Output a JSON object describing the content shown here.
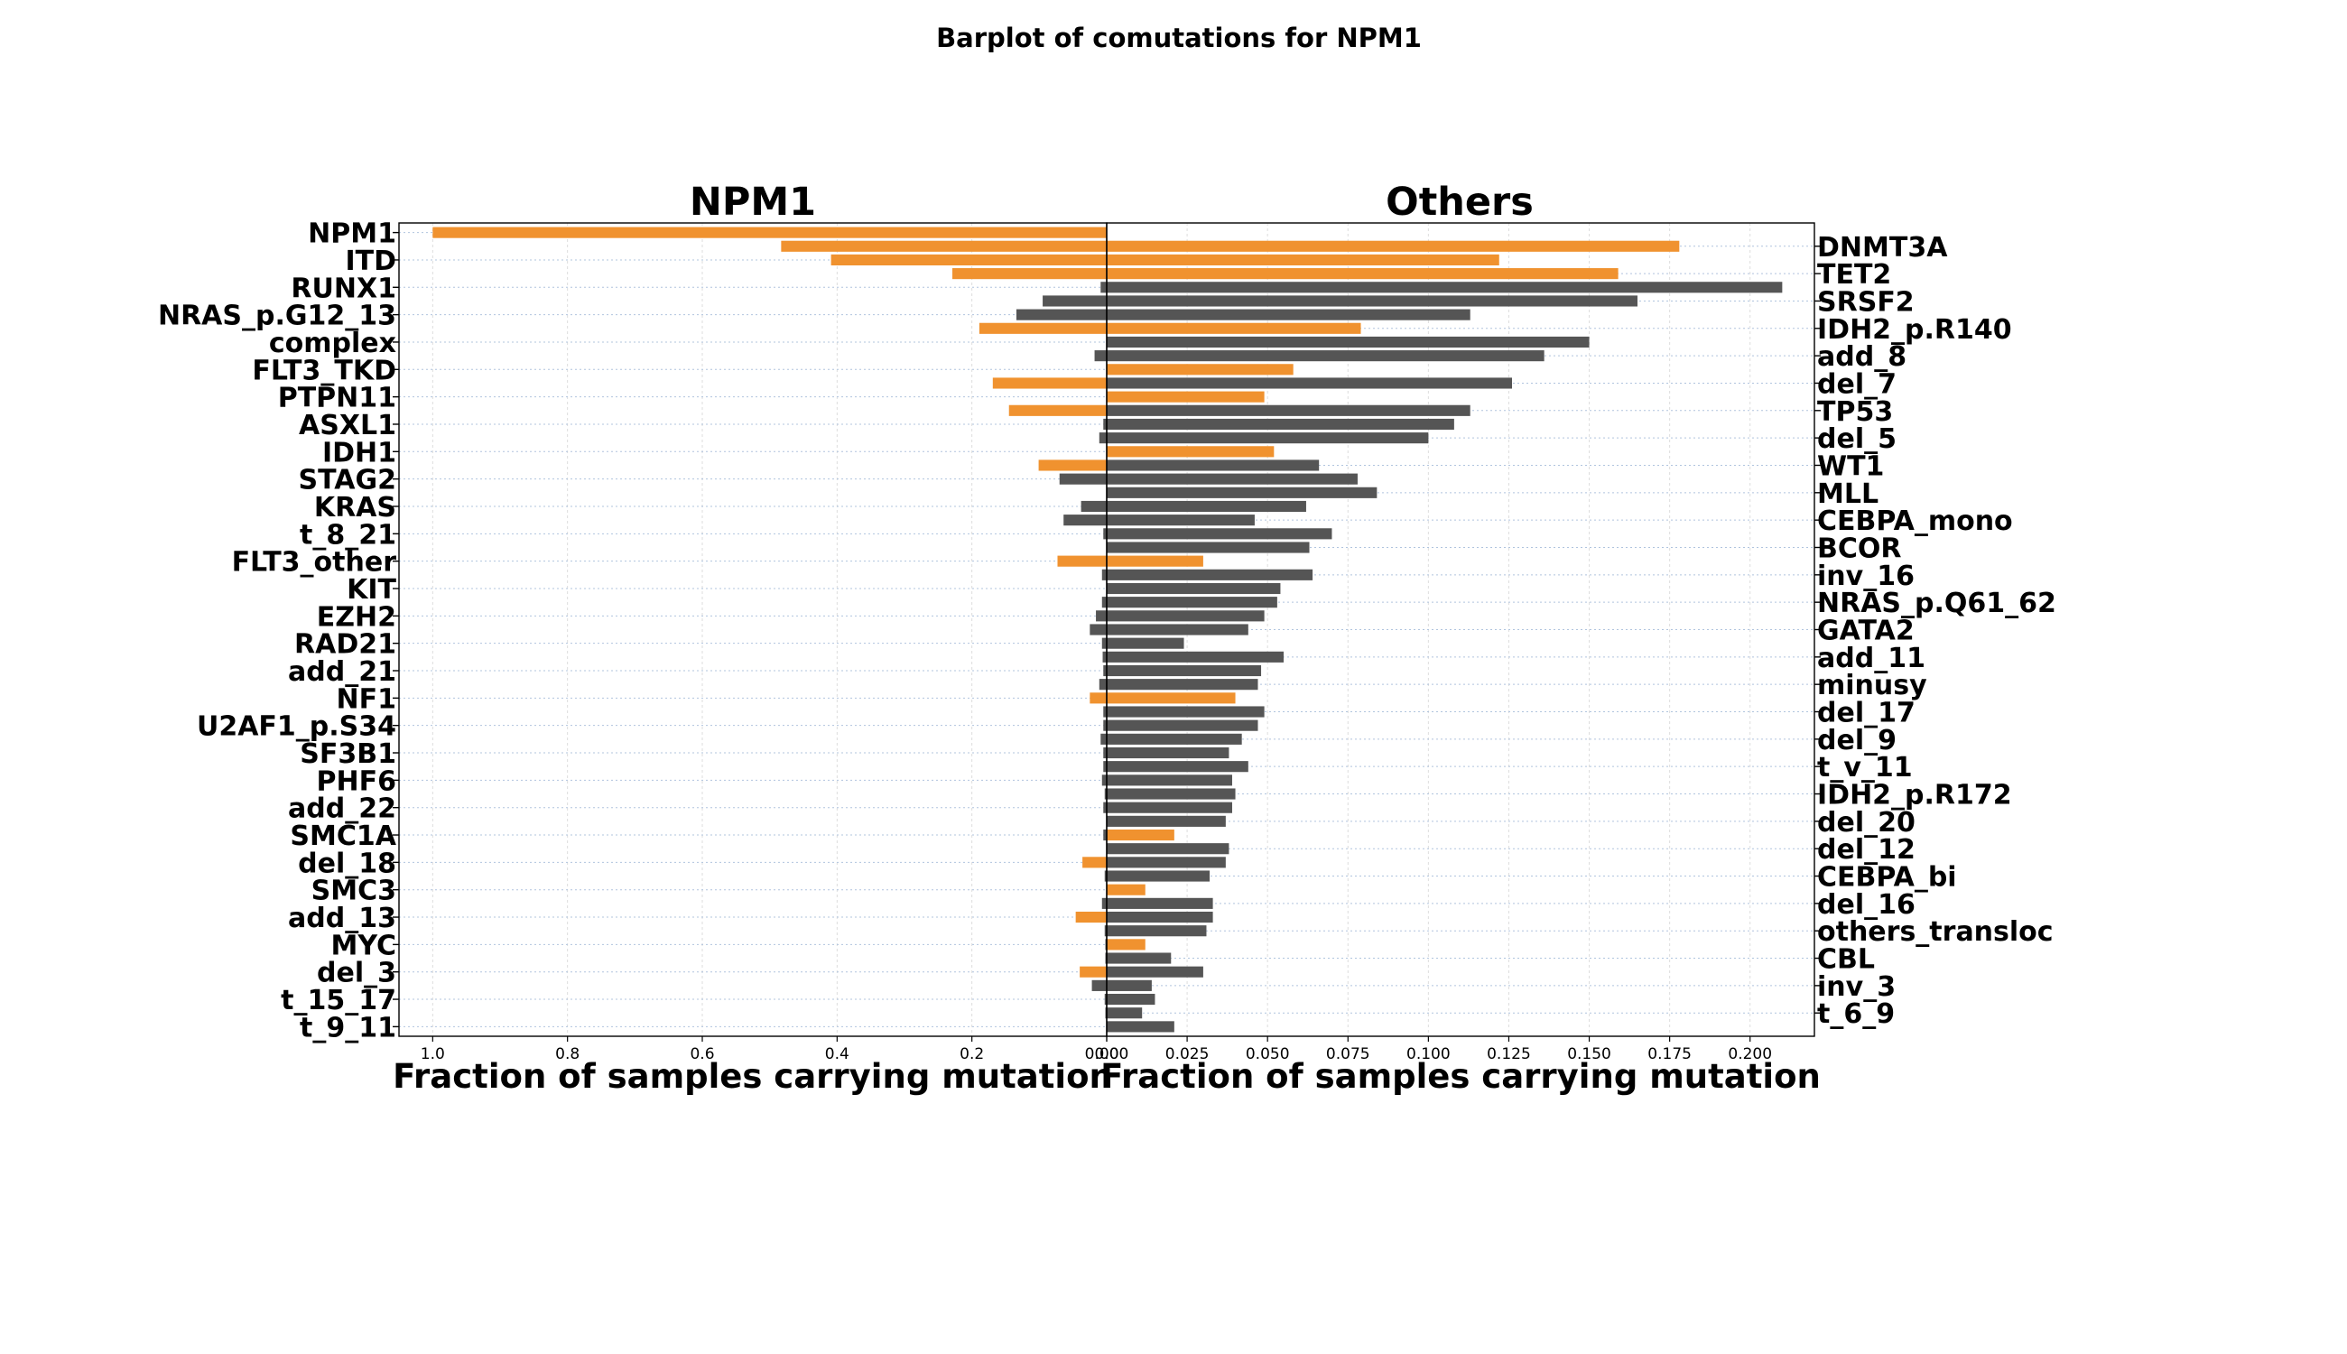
{
  "chart_data": {
    "type": "bar",
    "title": "Barplot  of comutations for NPM1",
    "colors": {
      "highlight": "#f0922f",
      "other": "#555555"
    },
    "left_panel": {
      "title": "NPM1",
      "xlabel": "Fraction of samples carrying mutation",
      "xlim": [
        1.05,
        0
      ],
      "xticks": [
        1.0,
        0.8,
        0.6,
        0.4,
        0.2,
        0.0
      ],
      "xtick_labels": [
        "1.0",
        "0.8",
        "0.6",
        "0.4",
        "0.2",
        "0.0"
      ],
      "tick_labels": [
        "NPM1",
        "ITD",
        "RUNX1",
        "NRAS_p.G12_13",
        "complex",
        "FLT3_TKD",
        "PTPN11",
        "ASXL1",
        "IDH1",
        "STAG2",
        "KRAS",
        "t_8_21",
        "FLT3_other",
        "KIT",
        "EZH2",
        "RAD21",
        "add_21",
        "NF1",
        "U2AF1_p.S34",
        "SF3B1",
        "PHF6",
        "add_22",
        "SMC1A",
        "del_18",
        "SMC3",
        "add_13",
        "MYC",
        "del_3",
        "t_15_17",
        "t_9_11"
      ]
    },
    "right_panel": {
      "title": "Others",
      "xlabel": "Fraction of samples carrying mutation",
      "xlim": [
        0,
        0.22
      ],
      "xticks": [
        0.0,
        0.025,
        0.05,
        0.075,
        0.1,
        0.125,
        0.15,
        0.175,
        0.2
      ],
      "xtick_labels": [
        "0.000",
        "0.025",
        "0.050",
        "0.075",
        "0.100",
        "0.125",
        "0.150",
        "0.175",
        "0.200"
      ],
      "tick_labels": [
        "DNMT3A",
        "TET2",
        "SRSF2",
        "IDH2_p.R140",
        "add_8",
        "del_7",
        "TP53",
        "del_5",
        "WT1",
        "MLL",
        "CEBPA_mono",
        "BCOR",
        "inv_16",
        "NRAS_p.Q61_62",
        "GATA2",
        "add_11",
        "minusy",
        "del_17",
        "del_9",
        "t_v_11",
        "IDH2_p.R172",
        "del_20",
        "del_12",
        "CEBPA_bi",
        "del_16",
        "others_transloc",
        "CBL",
        "inv_3",
        "t_6_9"
      ]
    },
    "rows": 59,
    "left_values": [
      1.0,
      0.483,
      0.409,
      0.229,
      0.009,
      0.095,
      0.134,
      0.189,
      0.0,
      0.018,
      0.0,
      0.169,
      0.0,
      0.145,
      0.005,
      0.011,
      0.0,
      0.101,
      0.07,
      0.0,
      0.038,
      0.064,
      0.005,
      0.0,
      0.073,
      0.007,
      0.0,
      0.007,
      0.016,
      0.025,
      0.007,
      0.006,
      0.005,
      0.011,
      0.025,
      0.005,
      0.005,
      0.009,
      0.005,
      0.005,
      0.007,
      0.003,
      0.005,
      0.0,
      0.005,
      0.0,
      0.036,
      0.003,
      0.0,
      0.007,
      0.046,
      0.003,
      0.002,
      0.002,
      0.04,
      0.022,
      0.003,
      0.002,
      0.0
    ],
    "left_highlight": [
      true,
      true,
      true,
      true,
      false,
      false,
      false,
      true,
      false,
      false,
      false,
      true,
      false,
      true,
      false,
      false,
      false,
      true,
      false,
      false,
      false,
      false,
      false,
      false,
      true,
      false,
      false,
      false,
      false,
      false,
      false,
      false,
      false,
      false,
      true,
      false,
      false,
      false,
      false,
      false,
      false,
      false,
      false,
      false,
      false,
      false,
      true,
      false,
      false,
      false,
      true,
      false,
      false,
      false,
      true,
      false,
      false,
      false,
      false
    ],
    "right_values": [
      0.0,
      0.178,
      0.122,
      0.159,
      0.21,
      0.165,
      0.113,
      0.079,
      0.15,
      0.136,
      0.058,
      0.126,
      0.049,
      0.113,
      0.108,
      0.1,
      0.052,
      0.066,
      0.078,
      0.084,
      0.062,
      0.046,
      0.07,
      0.063,
      0.03,
      0.064,
      0.054,
      0.053,
      0.049,
      0.044,
      0.024,
      0.055,
      0.048,
      0.047,
      0.04,
      0.049,
      0.047,
      0.042,
      0.038,
      0.044,
      0.039,
      0.04,
      0.039,
      0.037,
      0.021,
      0.038,
      0.037,
      0.032,
      0.012,
      0.033,
      0.033,
      0.031,
      0.012,
      0.02,
      0.03,
      0.014,
      0.015,
      0.011,
      0.021
    ],
    "right_highlight": [
      false,
      true,
      true,
      true,
      false,
      false,
      false,
      true,
      false,
      false,
      true,
      false,
      true,
      false,
      false,
      false,
      true,
      false,
      false,
      false,
      false,
      false,
      false,
      false,
      true,
      false,
      false,
      false,
      false,
      false,
      false,
      false,
      false,
      false,
      true,
      false,
      false,
      false,
      false,
      false,
      false,
      false,
      false,
      false,
      true,
      false,
      false,
      false,
      true,
      false,
      false,
      false,
      true,
      false,
      false,
      false,
      false,
      false,
      false
    ]
  }
}
